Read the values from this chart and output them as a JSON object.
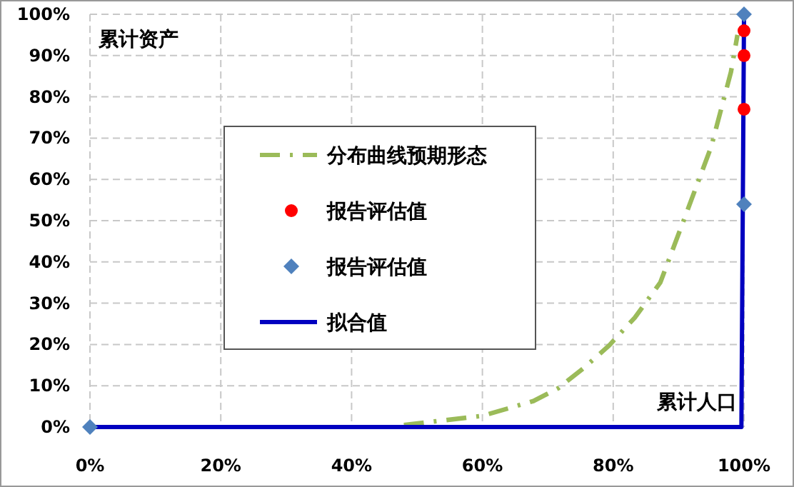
{
  "chart_data": {
    "type": "line",
    "xlabel": "累计人口",
    "ylabel": "累计资产",
    "xlim": [
      0,
      100
    ],
    "ylim": [
      0,
      100
    ],
    "xticks": [
      {
        "value": 0,
        "label": "0%"
      },
      {
        "value": 20,
        "label": "20%"
      },
      {
        "value": 40,
        "label": "40%"
      },
      {
        "value": 60,
        "label": "60%"
      },
      {
        "value": 80,
        "label": "80%"
      },
      {
        "value": 100,
        "label": "100%"
      }
    ],
    "yticks": [
      {
        "value": 0,
        "label": "0%"
      },
      {
        "value": 10,
        "label": "10%"
      },
      {
        "value": 20,
        "label": "20%"
      },
      {
        "value": 30,
        "label": "30%"
      },
      {
        "value": 40,
        "label": "40%"
      },
      {
        "value": 50,
        "label": "50%"
      },
      {
        "value": 60,
        "label": "60%"
      },
      {
        "value": 70,
        "label": "70%"
      },
      {
        "value": 80,
        "label": "80%"
      },
      {
        "value": 90,
        "label": "90%"
      },
      {
        "value": 100,
        "label": "100%"
      }
    ],
    "grid": true,
    "legend": "center",
    "series": [
      {
        "name": "分布曲线预期形态",
        "line_style": "dashed",
        "marker": "none",
        "color": "#9bbb59",
        "x": [
          48,
          60,
          67.8,
          71.6,
          75.5,
          79.4,
          83.3,
          87.2,
          91,
          95,
          98,
          99
        ],
        "values": [
          0.5,
          2.7,
          6.3,
          9.4,
          14.3,
          19.8,
          26.5,
          35,
          51,
          68,
          86,
          95
        ]
      },
      {
        "name": "报告评估值",
        "type": "scatter",
        "marker": "circle",
        "color": "#ff0000",
        "x": [
          100,
          100,
          100
        ],
        "values": [
          96,
          90,
          77
        ]
      },
      {
        "name": "报告评估值",
        "type": "scatter",
        "marker": "diamond",
        "color": "#4f81bd",
        "x": [
          0,
          100,
          100
        ],
        "values": [
          0,
          54,
          100
        ]
      },
      {
        "name": "拟合值",
        "line_style": "solid",
        "marker": "none",
        "color": "#0000c0",
        "x": [
          0,
          99.6,
          100
        ],
        "values": [
          0,
          0,
          100
        ]
      }
    ]
  }
}
